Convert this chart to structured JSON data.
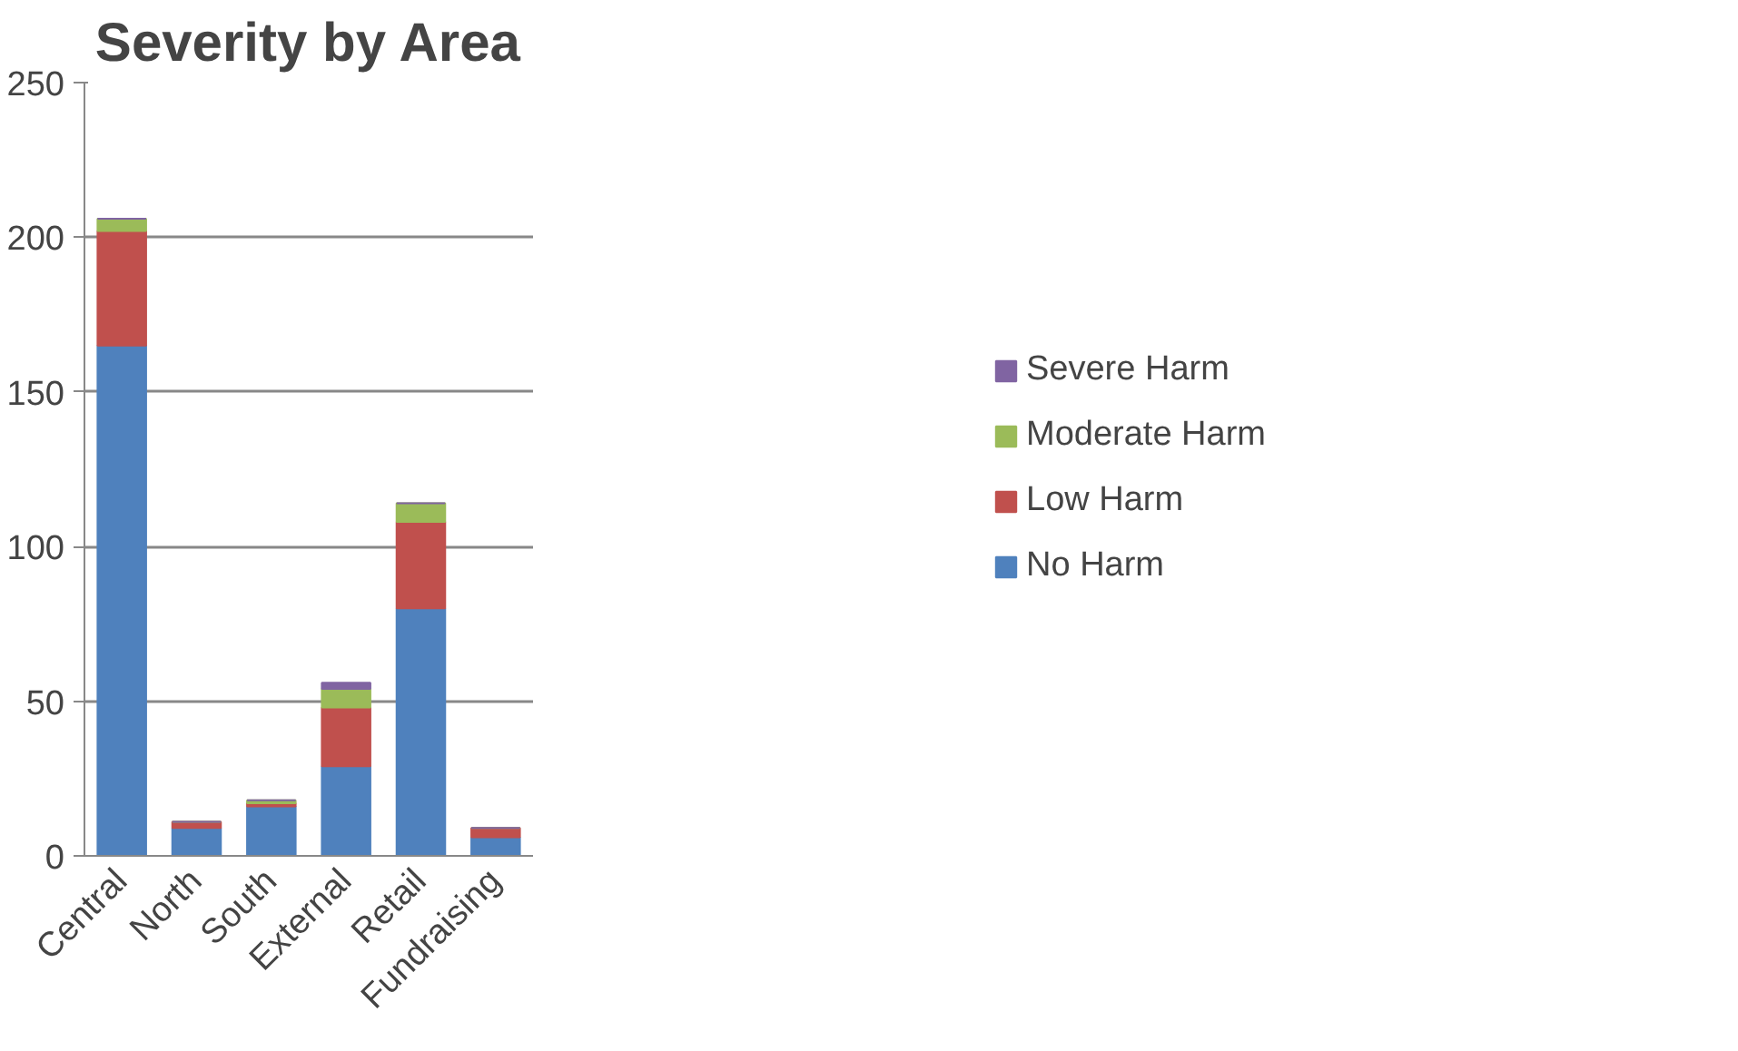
{
  "chart_data": {
    "type": "bar",
    "title": "Severity by Area",
    "stacked": true,
    "categories": [
      "Central",
      "North",
      "South",
      "External",
      "Retail",
      "Fundraising"
    ],
    "series": [
      {
        "name": "No Harm",
        "color": "#4f81bd",
        "values": [
          165,
          9,
          16,
          29,
          80,
          6
        ]
      },
      {
        "name": "Low Harm",
        "color": "#c0504d",
        "values": [
          37,
          2,
          1,
          19,
          28,
          3
        ]
      },
      {
        "name": "Moderate Harm",
        "color": "#9bbb59",
        "values": [
          4,
          0,
          1,
          6,
          6,
          0
        ]
      },
      {
        "name": "Severe Harm",
        "color": "#8064a2",
        "values": [
          0,
          0,
          0,
          2,
          0,
          0
        ]
      }
    ],
    "ylim": [
      0,
      250
    ],
    "yticks": [
      0,
      50,
      100,
      150,
      200,
      250
    ],
    "grid": "y",
    "legend": "right"
  }
}
